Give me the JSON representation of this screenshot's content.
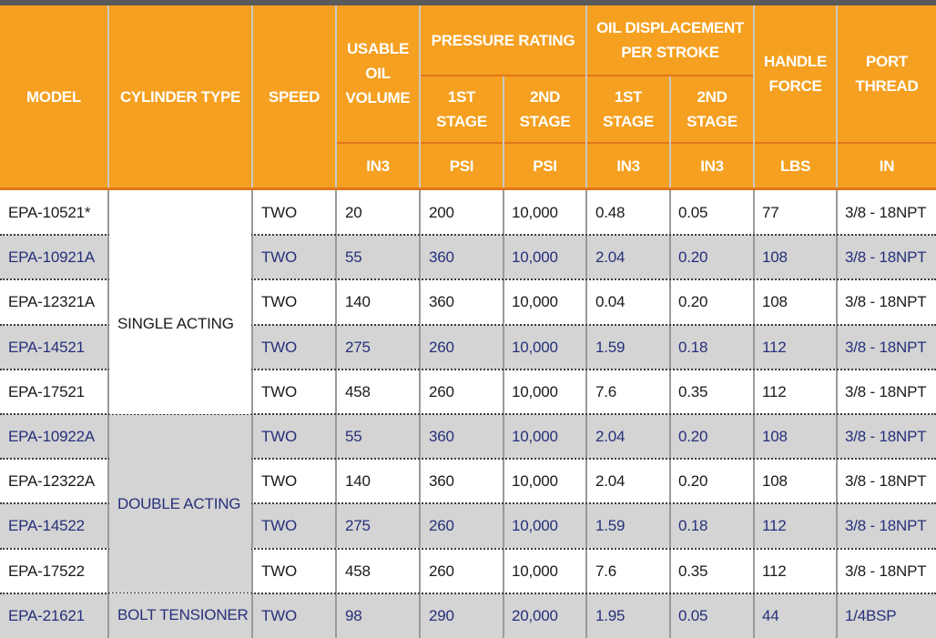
{
  "header": {
    "model": "MODEL",
    "cylinder_type": "CYLINDER TYPE",
    "speed": "SPEED",
    "usable_oil_volume": "USABLE\nOIL\nVOLUME",
    "pressure_rating": "PRESSURE RATING",
    "oil_displacement": "OIL  DISPLACEMENT\nPER STROKE",
    "handle_force": "HANDLE\nFORCE",
    "port_thread": "PORT\nTHREAD",
    "stage1": "1ST\nSTAGE",
    "stage2": "2ND\nSTAGE",
    "units": {
      "volume": "IN3",
      "pressure1": "PSI",
      "pressure2": "PSI",
      "disp1": "IN3",
      "disp2": "IN3",
      "force": "LBS",
      "thread": "IN"
    }
  },
  "cylinder_groups": [
    {
      "label": "",
      "shade": "white"
    },
    {
      "label": "SINGLE ACTING",
      "shade": "white"
    },
    {
      "label": "DOUBLE ACTING",
      "shade": "gray"
    },
    {
      "label": "BOLT TENSIONER",
      "shade": "gray"
    }
  ],
  "rows": [
    {
      "model": "EPA-10521*",
      "speed": "TWO",
      "volume": "20",
      "p1": "200",
      "p2": "10,000",
      "d1": "0.48",
      "d2": "0.05",
      "force": "77",
      "thread": "3/8 - 18NPT",
      "shade": "white"
    },
    {
      "model": "EPA-10921A",
      "speed": "TWO",
      "volume": "55",
      "p1": "360",
      "p2": "10,000",
      "d1": "2.04",
      "d2": "0.20",
      "force": "108",
      "thread": "3/8 - 18NPT",
      "shade": "gray"
    },
    {
      "model": "EPA-12321A",
      "speed": "TWO",
      "volume": "140",
      "p1": "360",
      "p2": "10,000",
      "d1": "0.04",
      "d2": "0.20",
      "force": "108",
      "thread": "3/8 - 18NPT",
      "shade": "white"
    },
    {
      "model": "EPA-14521",
      "speed": "TWO",
      "volume": "275",
      "p1": "260",
      "p2": "10,000",
      "d1": "1.59",
      "d2": "0.18",
      "force": "112",
      "thread": "3/8 - 18NPT",
      "shade": "gray"
    },
    {
      "model": "EPA-17521",
      "speed": "TWO",
      "volume": "458",
      "p1": "260",
      "p2": "10,000",
      "d1": "7.6",
      "d2": "0.35",
      "force": "112",
      "thread": "3/8 - 18NPT",
      "shade": "white"
    },
    {
      "model": "EPA-10922A",
      "speed": "TWO",
      "volume": "55",
      "p1": "360",
      "p2": "10,000",
      "d1": "2.04",
      "d2": "0.20",
      "force": "108",
      "thread": "3/8 - 18NPT",
      "shade": "gray"
    },
    {
      "model": "EPA-12322A",
      "speed": "TWO",
      "volume": "140",
      "p1": "360",
      "p2": "10,000",
      "d1": "2.04",
      "d2": "0.20",
      "force": "108",
      "thread": "3/8 - 18NPT",
      "shade": "white"
    },
    {
      "model": "EPA-14522",
      "speed": "TWO",
      "volume": "275",
      "p1": "260",
      "p2": "10,000",
      "d1": "1.59",
      "d2": "0.18",
      "force": "112",
      "thread": "3/8 - 18NPT",
      "shade": "gray"
    },
    {
      "model": "EPA-17522",
      "speed": "TWO",
      "volume": "458",
      "p1": "260",
      "p2": "10,000",
      "d1": "7.6",
      "d2": "0.35",
      "force": "112",
      "thread": "3/8 - 18NPT",
      "shade": "white"
    },
    {
      "model": "EPA-21621",
      "speed": "TWO",
      "volume": "98",
      "p1": "290",
      "p2": "20,000",
      "d1": "1.95",
      "d2": "0.05",
      "force": "44",
      "thread": "1/4BSP",
      "shade": "gray"
    }
  ],
  "colors": {
    "header_bg": "#f5a020",
    "header_text": "#ffffff",
    "row_gray": "#d4d4d4",
    "row_white": "#ffffff",
    "gray_row_text": "#26307a",
    "white_row_text": "#1a1a1a"
  }
}
